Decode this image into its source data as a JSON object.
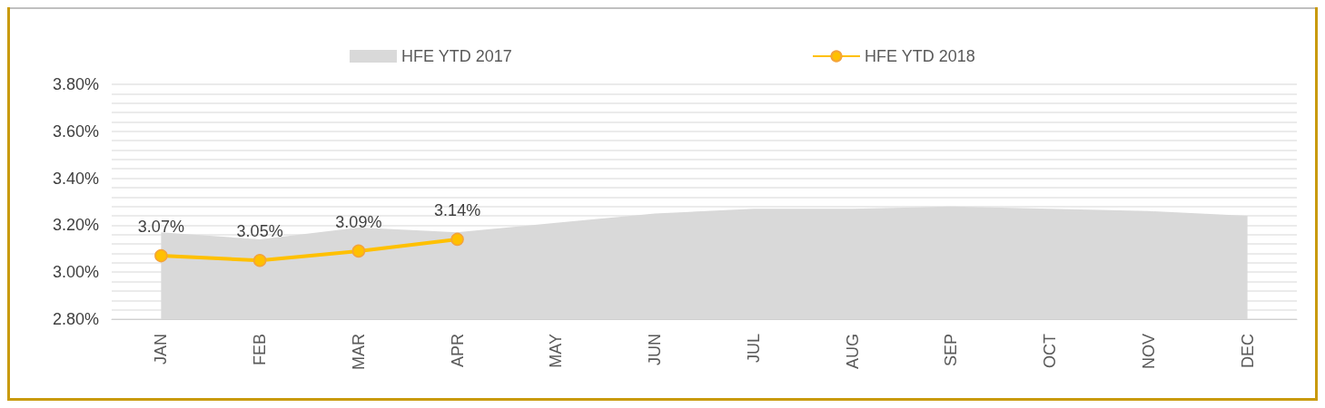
{
  "chart_data": {
    "type": "line",
    "categories": [
      "JAN",
      "FEB",
      "MAR",
      "APR",
      "MAY",
      "JUN",
      "JUL",
      "AUG",
      "SEP",
      "OCT",
      "NOV",
      "DEC"
    ],
    "series": [
      {
        "name": "HFE YTD 2017",
        "type": "area",
        "color": "#d9d9d9",
        "values": [
          3.17,
          3.14,
          3.19,
          3.17,
          3.21,
          3.25,
          3.27,
          3.27,
          3.28,
          3.27,
          3.26,
          3.24
        ]
      },
      {
        "name": "HFE YTD 2018",
        "color": "#ffc000",
        "marker": "circle",
        "values": [
          3.07,
          3.05,
          3.09,
          3.14,
          null,
          null,
          null,
          null,
          null,
          null,
          null,
          null
        ],
        "value_labels": [
          "3.07%",
          "3.05%",
          "3.09%",
          "3.14%",
          null,
          null,
          null,
          null,
          null,
          null,
          null,
          null
        ]
      }
    ],
    "ylim": [
      2.8,
      3.8
    ],
    "yticks": [
      {
        "value": 2.8,
        "label": "2.80%"
      },
      {
        "value": 2.84,
        "label": null
      },
      {
        "value": 2.88,
        "label": null
      },
      {
        "value": 2.92,
        "label": null
      },
      {
        "value": 2.96,
        "label": null
      },
      {
        "value": 3.0,
        "label": "3.00%"
      },
      {
        "value": 3.04,
        "label": null
      },
      {
        "value": 3.08,
        "label": null
      },
      {
        "value": 3.12,
        "label": null
      },
      {
        "value": 3.16,
        "label": null
      },
      {
        "value": 3.2,
        "label": "3.20%"
      },
      {
        "value": 3.24,
        "label": null
      },
      {
        "value": 3.28,
        "label": null
      },
      {
        "value": 3.32,
        "label": null
      },
      {
        "value": 3.36,
        "label": null
      },
      {
        "value": 3.4,
        "label": "3.40%"
      },
      {
        "value": 3.44,
        "label": null
      },
      {
        "value": 3.48,
        "label": null
      },
      {
        "value": 3.52,
        "label": null
      },
      {
        "value": 3.56,
        "label": null
      },
      {
        "value": 3.6,
        "label": "3.60%"
      },
      {
        "value": 3.64,
        "label": null
      },
      {
        "value": 3.68,
        "label": null
      },
      {
        "value": 3.72,
        "label": null
      },
      {
        "value": 3.76,
        "label": null
      },
      {
        "value": 3.8,
        "label": "3.80%"
      }
    ],
    "grid": "y",
    "legend": "top"
  }
}
